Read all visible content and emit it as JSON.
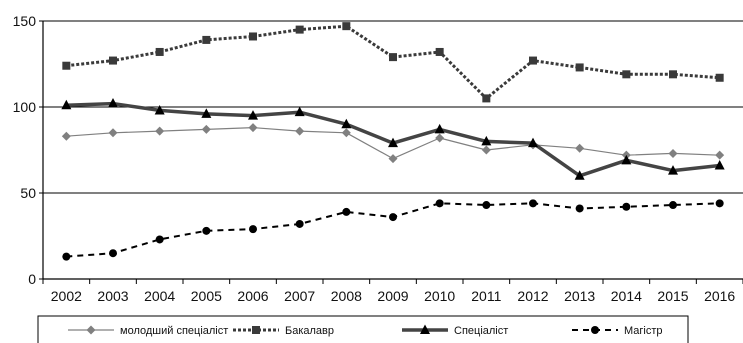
{
  "chart_data": {
    "type": "line",
    "title": "",
    "xlabel": "",
    "ylabel": "",
    "categories": [
      "2002",
      "2003",
      "2004",
      "2005",
      "2006",
      "2007",
      "2008",
      "2009",
      "2010",
      "2011",
      "2012",
      "2013",
      "2014",
      "2015",
      "2016"
    ],
    "ylim": [
      0,
      150
    ],
    "yticks": [
      0,
      50,
      100,
      150
    ],
    "grid": "horizontal",
    "legend_position": "bottom",
    "series": [
      {
        "name": "молодший спеціаліст",
        "color": "#808080",
        "marker": "diamond",
        "line": "solid-thin",
        "values": [
          83,
          85,
          86,
          87,
          88,
          86,
          85,
          70,
          82,
          75,
          78,
          76,
          72,
          73,
          72
        ]
      },
      {
        "name": "Бакалавр",
        "color": "#3a3a3a",
        "marker": "square",
        "line": "dashed-thick",
        "values": [
          124,
          127,
          132,
          139,
          141,
          145,
          147,
          129,
          132,
          105,
          127,
          123,
          119,
          119,
          117
        ]
      },
      {
        "name": "Спеціаліст",
        "color": "#444444",
        "marker": "triangle",
        "line": "solid-thick",
        "values": [
          101,
          102,
          98,
          96,
          95,
          97,
          90,
          79,
          87,
          80,
          79,
          60,
          69,
          63,
          66
        ]
      },
      {
        "name": "Магістр",
        "color": "#000000",
        "marker": "circle",
        "line": "dashed",
        "values": [
          13,
          15,
          23,
          28,
          29,
          32,
          39,
          36,
          44,
          43,
          44,
          41,
          42,
          43,
          44
        ]
      }
    ]
  }
}
